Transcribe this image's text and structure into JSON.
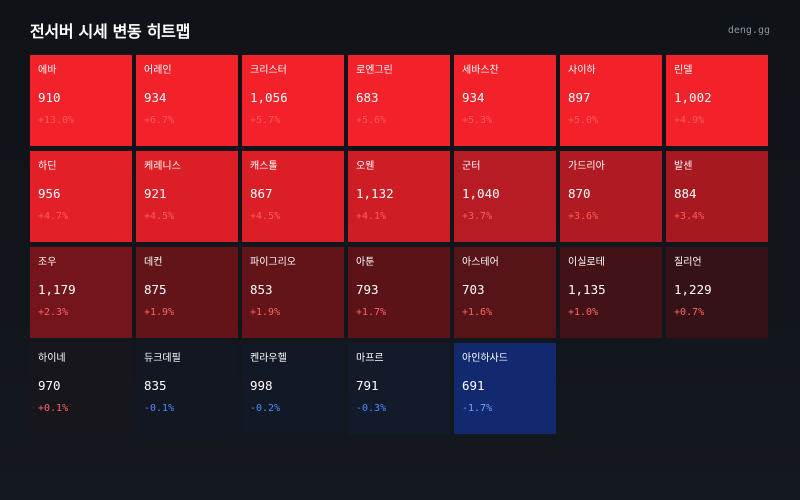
{
  "header": {
    "title": "전서버 시세 변동 히트맵",
    "brand": "deng.gg"
  },
  "cells": [
    {
      "name": "에바",
      "price": "910",
      "change": "+13.0%",
      "bg": "#f2212a",
      "change_color": "#ff5c5c"
    },
    {
      "name": "어레인",
      "price": "934",
      "change": "+6.7%",
      "bg": "#f2212a",
      "change_color": "#ff5c5c"
    },
    {
      "name": "크리스터",
      "price": "1,056",
      "change": "+5.7%",
      "bg": "#f2212a",
      "change_color": "#ff5c5c"
    },
    {
      "name": "로엔그린",
      "price": "683",
      "change": "+5.6%",
      "bg": "#f2212a",
      "change_color": "#ff5c5c"
    },
    {
      "name": "세바스찬",
      "price": "934",
      "change": "+5.3%",
      "bg": "#f2212a",
      "change_color": "#ff5c5c"
    },
    {
      "name": "사이하",
      "price": "897",
      "change": "+5.0%",
      "bg": "#f2212a",
      "change_color": "#ff5c5c"
    },
    {
      "name": "린델",
      "price": "1,002",
      "change": "+4.9%",
      "bg": "#f2212a",
      "change_color": "#ff5c5c"
    },
    {
      "name": "하딘",
      "price": "956",
      "change": "+4.7%",
      "bg": "#e31f28",
      "change_color": "#ff5c5c"
    },
    {
      "name": "케레니스",
      "price": "921",
      "change": "+4.5%",
      "bg": "#dc1f27",
      "change_color": "#ff5c5c"
    },
    {
      "name": "캐스톨",
      "price": "867",
      "change": "+4.5%",
      "bg": "#dc1f27",
      "change_color": "#ff5c5c"
    },
    {
      "name": "오웬",
      "price": "1,132",
      "change": "+4.1%",
      "bg": "#cf1d26",
      "change_color": "#ff5c5c"
    },
    {
      "name": "군터",
      "price": "1,040",
      "change": "+3.7%",
      "bg": "#b71b23",
      "change_color": "#ff5c5c"
    },
    {
      "name": "가드리아",
      "price": "870",
      "change": "+3.6%",
      "bg": "#b01a22",
      "change_color": "#ff5c5c"
    },
    {
      "name": "발센",
      "price": "884",
      "change": "+3.4%",
      "bg": "#a61920",
      "change_color": "#ff5c5c"
    },
    {
      "name": "조우",
      "price": "1,179",
      "change": "+2.3%",
      "bg": "#74151b",
      "change_color": "#ff6464"
    },
    {
      "name": "데컨",
      "price": "875",
      "change": "+1.9%",
      "bg": "#621419",
      "change_color": "#ff6464"
    },
    {
      "name": "파이그리오",
      "price": "853",
      "change": "+1.9%",
      "bg": "#621419",
      "change_color": "#ff6464"
    },
    {
      "name": "아툰",
      "price": "793",
      "change": "+1.7%",
      "bg": "#5b1318",
      "change_color": "#ff6464"
    },
    {
      "name": "아스테어",
      "price": "703",
      "change": "+1.6%",
      "bg": "#561318",
      "change_color": "#ff6464"
    },
    {
      "name": "이실로테",
      "price": "1,135",
      "change": "+1.0%",
      "bg": "#431217",
      "change_color": "#ff6464"
    },
    {
      "name": "질리언",
      "price": "1,229",
      "change": "+0.7%",
      "bg": "#351217",
      "change_color": "#ff6464"
    },
    {
      "name": "하이네",
      "price": "970",
      "change": "+0.1%",
      "bg": "#17161c",
      "change_color": "#ff6464"
    },
    {
      "name": "듀크데필",
      "price": "835",
      "change": "-0.1%",
      "bg": "#131722",
      "change_color": "#4b8cff"
    },
    {
      "name": "켄라우헬",
      "price": "998",
      "change": "-0.2%",
      "bg": "#131826",
      "change_color": "#4b8cff"
    },
    {
      "name": "마프르",
      "price": "791",
      "change": "-0.3%",
      "bg": "#131a2a",
      "change_color": "#4b8cff"
    },
    {
      "name": "아인하사드",
      "price": "691",
      "change": "-1.7%",
      "bg": "#12296f",
      "change_color": "#6fa2ff"
    }
  ]
}
